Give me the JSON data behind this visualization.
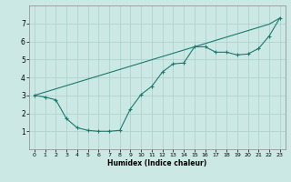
{
  "curve_x": [
    0,
    1,
    2,
    3,
    4,
    5,
    6,
    7,
    8,
    9,
    10,
    11,
    12,
    13,
    14,
    15,
    16,
    17,
    18,
    19,
    20,
    21,
    22,
    23
  ],
  "curve_y": [
    3.0,
    2.9,
    2.75,
    1.7,
    1.2,
    1.05,
    1.0,
    1.0,
    1.05,
    2.25,
    3.05,
    3.5,
    4.3,
    4.75,
    4.8,
    5.7,
    5.7,
    5.4,
    5.4,
    5.25,
    5.3,
    5.6,
    6.3,
    7.3
  ],
  "straight_x": [
    0,
    1,
    2,
    3,
    4,
    5,
    6,
    7,
    8,
    9,
    10,
    11,
    12,
    13,
    14,
    15,
    16,
    17,
    18,
    19,
    20,
    21,
    22,
    23
  ],
  "straight_y": [
    3.0,
    3.18,
    3.36,
    3.54,
    3.72,
    3.9,
    4.08,
    4.26,
    4.44,
    4.62,
    4.8,
    4.98,
    5.16,
    5.34,
    5.52,
    5.7,
    5.88,
    6.06,
    6.24,
    6.42,
    6.6,
    6.78,
    6.96,
    7.3
  ],
  "line_color": "#1a7a6e",
  "bg_color": "#cce8e4",
  "grid_color": "#aacfc9",
  "xlabel": "Humidex (Indice chaleur)",
  "ylim": [
    0,
    8
  ],
  "xlim": [
    -0.5,
    23.5
  ],
  "yticks": [
    1,
    2,
    3,
    4,
    5,
    6,
    7
  ],
  "xticks": [
    0,
    1,
    2,
    3,
    4,
    5,
    6,
    7,
    8,
    9,
    10,
    11,
    12,
    13,
    14,
    15,
    16,
    17,
    18,
    19,
    20,
    21,
    22,
    23
  ]
}
